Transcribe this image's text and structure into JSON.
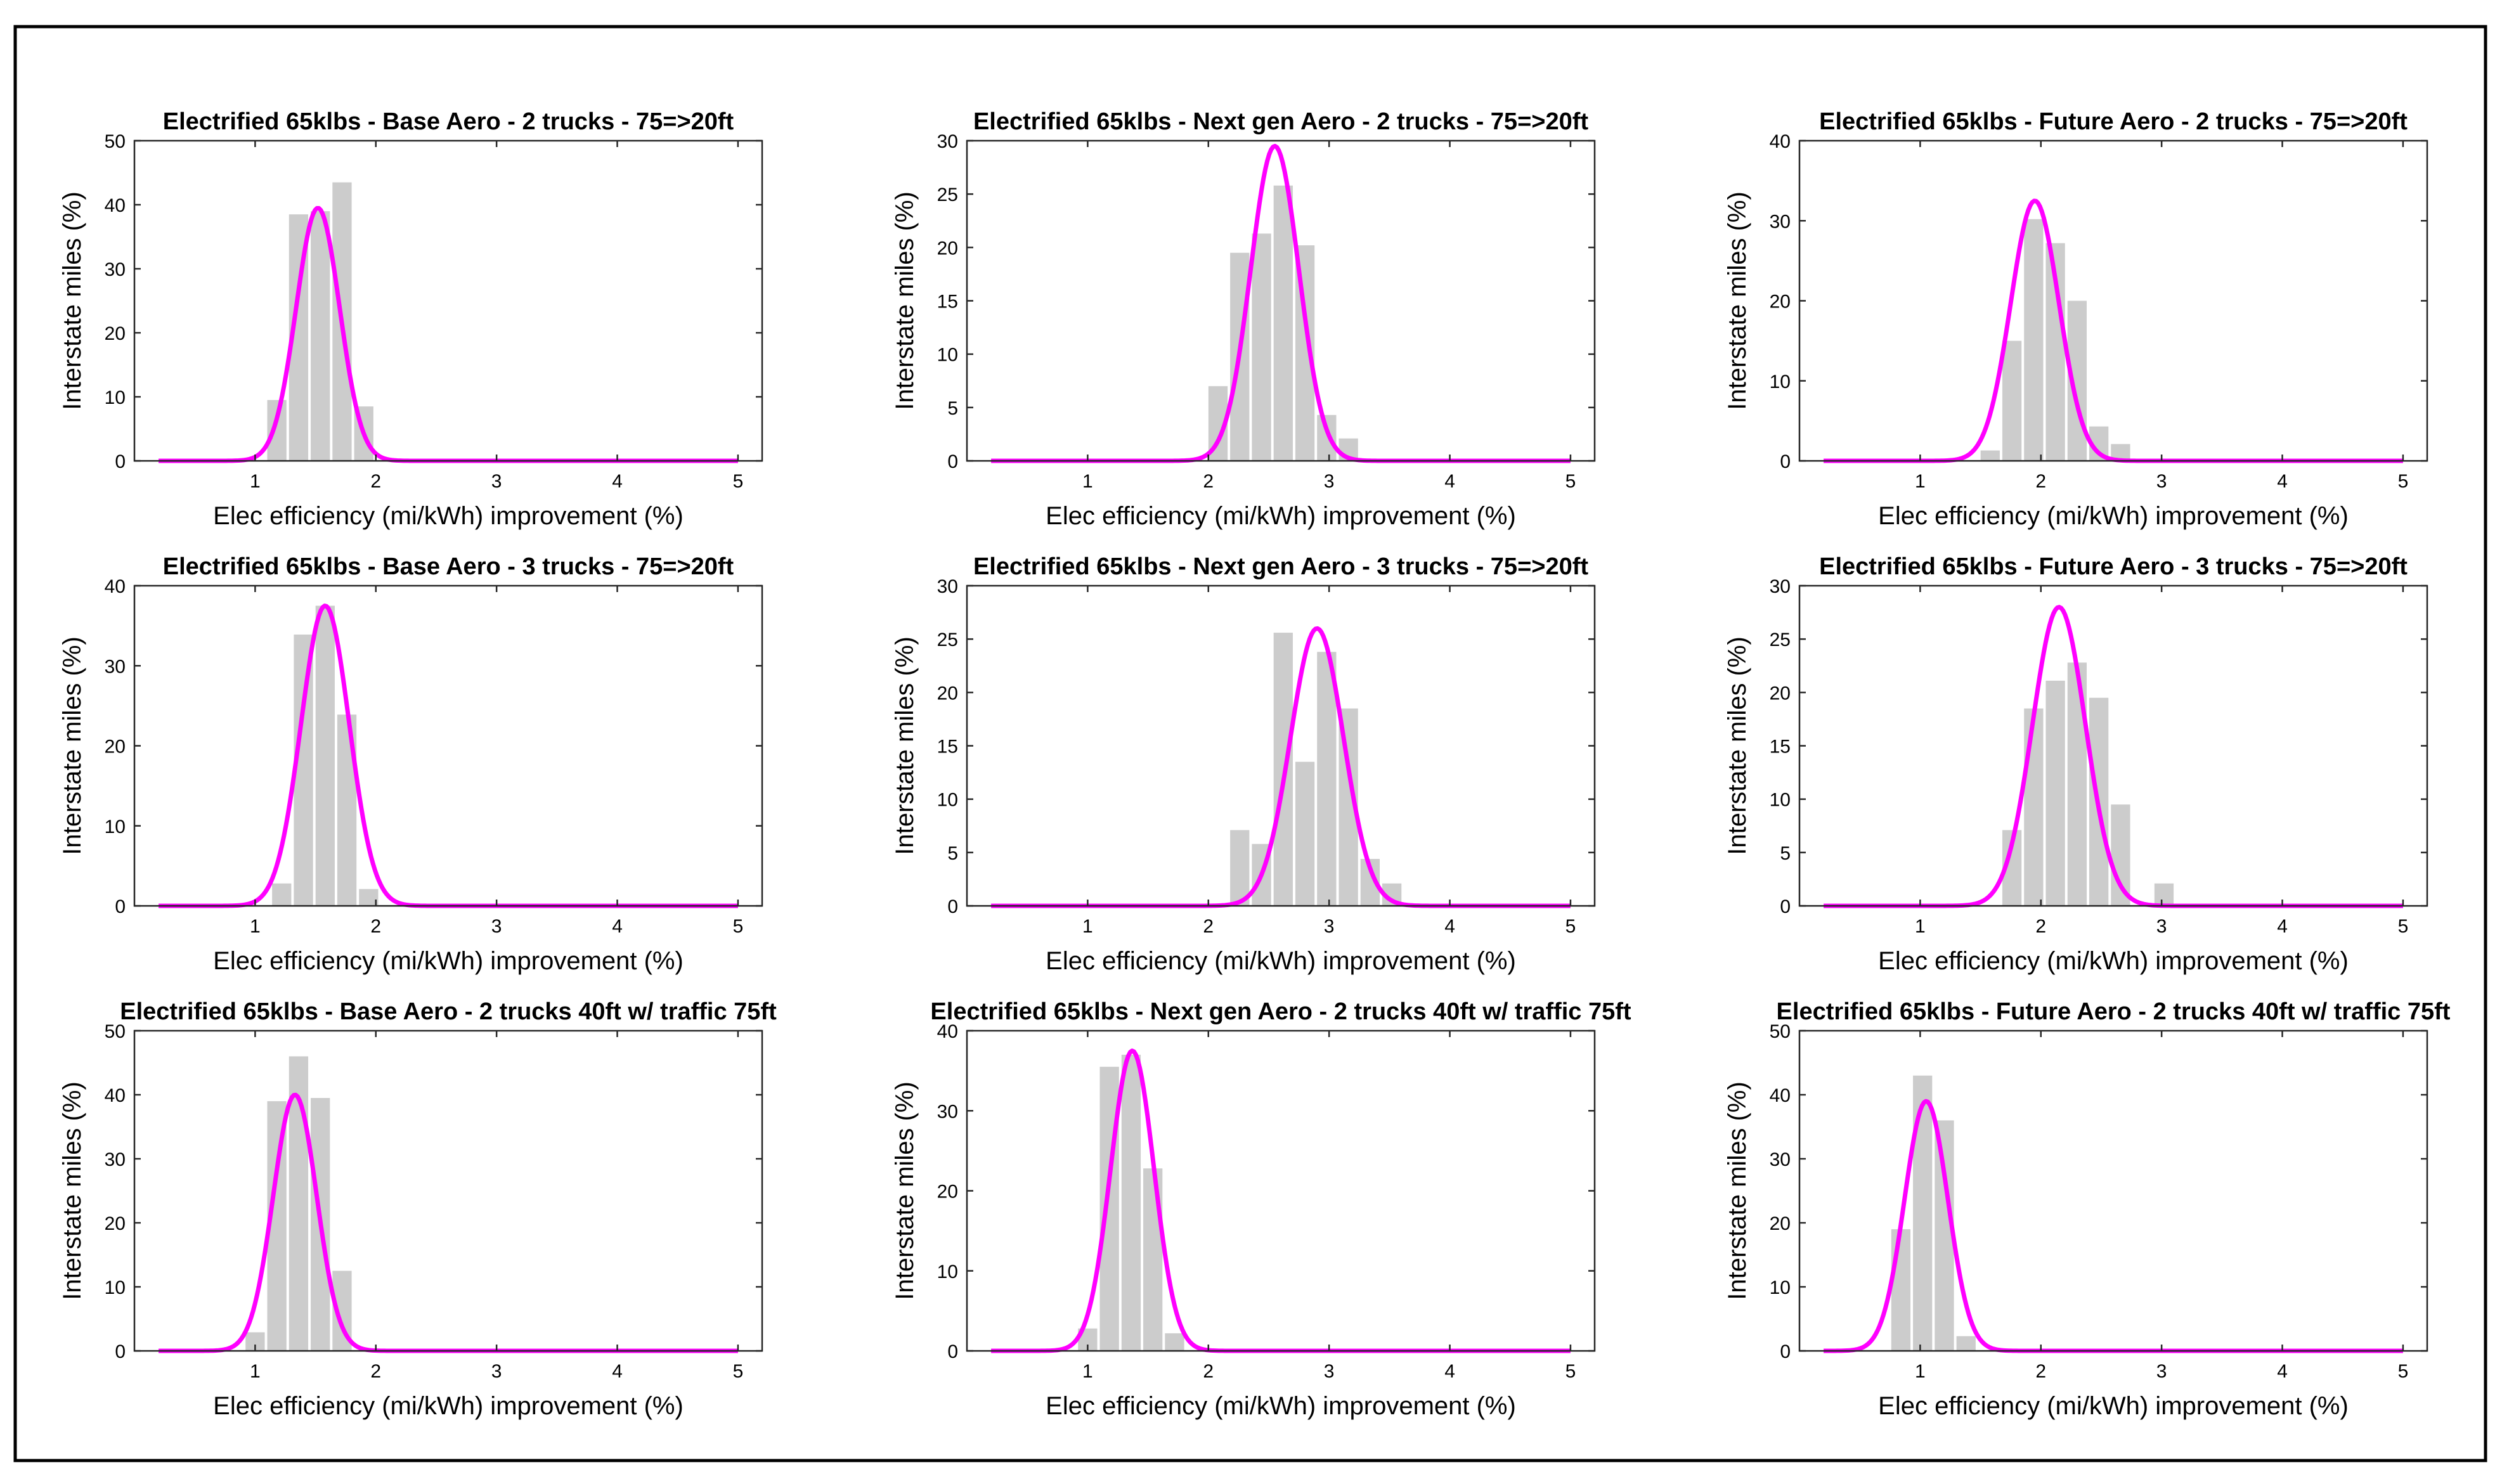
{
  "figure": {
    "background": "#ffffff",
    "border_color": "#000000"
  },
  "style": {
    "bar_color": "#cccccc",
    "curve_color": "#ff00ff"
  },
  "chart_data": [
    {
      "type": "bar",
      "title": "Electrified 65klbs - Base Aero - 2 trucks - 75=>20ft",
      "xlabel": "Elec efficiency (mi/kWh) improvement (%)",
      "ylabel": "Interstate miles (%)",
      "xlim": [
        0,
        5.2
      ],
      "ylim": [
        0,
        50
      ],
      "xticks": [
        1,
        2,
        3,
        4,
        5
      ],
      "yticks": [
        0,
        10,
        20,
        30,
        40,
        50
      ],
      "bin_width": 0.18,
      "bins": [
        {
          "x": 1.18,
          "y": 9.5
        },
        {
          "x": 1.36,
          "y": 38.5
        },
        {
          "x": 1.54,
          "y": 39
        },
        {
          "x": 1.72,
          "y": 43.5
        },
        {
          "x": 1.9,
          "y": 8.5
        }
      ],
      "fit": {
        "mu": 1.52,
        "sigma": 0.18,
        "peak": 39.5,
        "x_range": [
          0.2,
          5.0
        ]
      }
    },
    {
      "type": "bar",
      "title": "Electrified 65klbs - Next gen Aero - 2 trucks - 75=>20ft",
      "xlabel": "Elec efficiency (mi/kWh) improvement (%)",
      "ylabel": "Interstate miles (%)",
      "xlim": [
        0,
        5.2
      ],
      "ylim": [
        0,
        30
      ],
      "xticks": [
        1,
        2,
        3,
        4,
        5
      ],
      "yticks": [
        0,
        5,
        10,
        15,
        20,
        25,
        30
      ],
      "bin_width": 0.18,
      "bins": [
        {
          "x": 2.08,
          "y": 7
        },
        {
          "x": 2.26,
          "y": 19.5
        },
        {
          "x": 2.44,
          "y": 21.3
        },
        {
          "x": 2.62,
          "y": 25.8
        },
        {
          "x": 2.8,
          "y": 20.2
        },
        {
          "x": 2.98,
          "y": 4.3
        },
        {
          "x": 3.16,
          "y": 2.1
        }
      ],
      "fit": {
        "mu": 2.55,
        "sigma": 0.2,
        "peak": 29.5,
        "x_range": [
          0.2,
          5.0
        ]
      }
    },
    {
      "type": "bar",
      "title": "Electrified 65klbs - Future Aero - 2 trucks - 75=>20ft",
      "xlabel": "Elec efficiency (mi/kWh) improvement (%)",
      "ylabel": "Interstate miles (%)",
      "xlim": [
        0,
        5.2
      ],
      "ylim": [
        0,
        40
      ],
      "xticks": [
        1,
        2,
        3,
        4,
        5
      ],
      "yticks": [
        0,
        10,
        20,
        30,
        40
      ],
      "bin_width": 0.18,
      "bins": [
        {
          "x": 1.58,
          "y": 1.3
        },
        {
          "x": 1.76,
          "y": 15
        },
        {
          "x": 1.94,
          "y": 30.2
        },
        {
          "x": 2.12,
          "y": 27.2
        },
        {
          "x": 2.3,
          "y": 20
        },
        {
          "x": 2.48,
          "y": 4.3
        },
        {
          "x": 2.66,
          "y": 2.1
        }
      ],
      "fit": {
        "mu": 1.95,
        "sigma": 0.2,
        "peak": 32.5,
        "x_range": [
          0.2,
          5.0
        ]
      }
    },
    {
      "type": "bar",
      "title": "Electrified 65klbs - Base Aero - 3 trucks - 75=>20ft",
      "xlabel": "Elec efficiency (mi/kWh) improvement (%)",
      "ylabel": "Interstate miles (%)",
      "xlim": [
        0,
        5.2
      ],
      "ylim": [
        0,
        40
      ],
      "xticks": [
        1,
        2,
        3,
        4,
        5
      ],
      "yticks": [
        0,
        10,
        20,
        30,
        40
      ],
      "bin_width": 0.18,
      "bins": [
        {
          "x": 1.22,
          "y": 2.8
        },
        {
          "x": 1.4,
          "y": 33.9
        },
        {
          "x": 1.58,
          "y": 37.5
        },
        {
          "x": 1.76,
          "y": 23.9
        },
        {
          "x": 1.94,
          "y": 2.1
        }
      ],
      "fit": {
        "mu": 1.58,
        "sigma": 0.2,
        "peak": 37.5,
        "x_range": [
          0.2,
          5.0
        ]
      }
    },
    {
      "type": "bar",
      "title": "Electrified 65klbs - Next gen Aero - 3 trucks - 75=>20ft",
      "xlabel": "Elec efficiency (mi/kWh) improvement (%)",
      "ylabel": "Interstate miles (%)",
      "xlim": [
        0,
        5.2
      ],
      "ylim": [
        0,
        30
      ],
      "xticks": [
        1,
        2,
        3,
        4,
        5
      ],
      "yticks": [
        0,
        5,
        10,
        15,
        20,
        25,
        30
      ],
      "bin_width": 0.18,
      "bins": [
        {
          "x": 2.26,
          "y": 7.1
        },
        {
          "x": 2.44,
          "y": 5.8
        },
        {
          "x": 2.62,
          "y": 25.6
        },
        {
          "x": 2.8,
          "y": 13.5
        },
        {
          "x": 2.98,
          "y": 23.8
        },
        {
          "x": 3.16,
          "y": 18.5
        },
        {
          "x": 3.34,
          "y": 4.4
        },
        {
          "x": 3.52,
          "y": 2.1
        }
      ],
      "fit": {
        "mu": 2.9,
        "sigma": 0.22,
        "peak": 26,
        "x_range": [
          0.2,
          5.0
        ]
      }
    },
    {
      "type": "bar",
      "title": "Electrified 65klbs - Future Aero - 3 trucks - 75=>20ft",
      "xlabel": "Elec efficiency (mi/kWh) improvement (%)",
      "ylabel": "Interstate miles (%)",
      "xlim": [
        0,
        5.2
      ],
      "ylim": [
        0,
        30
      ],
      "xticks": [
        1,
        2,
        3,
        4,
        5
      ],
      "yticks": [
        0,
        5,
        10,
        15,
        20,
        25,
        30
      ],
      "bin_width": 0.18,
      "bins": [
        {
          "x": 1.76,
          "y": 7.1
        },
        {
          "x": 1.94,
          "y": 18.5
        },
        {
          "x": 2.12,
          "y": 21.1
        },
        {
          "x": 2.3,
          "y": 22.8
        },
        {
          "x": 2.48,
          "y": 19.5
        },
        {
          "x": 2.66,
          "y": 9.5
        },
        {
          "x": 3.02,
          "y": 2.1
        }
      ],
      "fit": {
        "mu": 2.15,
        "sigma": 0.22,
        "peak": 28,
        "x_range": [
          0.2,
          5.0
        ]
      }
    },
    {
      "type": "bar",
      "title": "Electrified 65klbs - Base Aero - 2 trucks 40ft w/ traffic 75ft",
      "xlabel": "Elec efficiency (mi/kWh) improvement (%)",
      "ylabel": "Interstate miles (%)",
      "xlim": [
        0,
        5.2
      ],
      "ylim": [
        0,
        50
      ],
      "xticks": [
        1,
        2,
        3,
        4,
        5
      ],
      "yticks": [
        0,
        10,
        20,
        30,
        40,
        50
      ],
      "bin_width": 0.18,
      "bins": [
        {
          "x": 1.0,
          "y": 2.9
        },
        {
          "x": 1.18,
          "y": 39
        },
        {
          "x": 1.36,
          "y": 46
        },
        {
          "x": 1.54,
          "y": 39.5
        },
        {
          "x": 1.72,
          "y": 12.5
        }
      ],
      "fit": {
        "mu": 1.33,
        "sigma": 0.18,
        "peak": 40,
        "x_range": [
          0.2,
          5.0
        ]
      }
    },
    {
      "type": "bar",
      "title": "Electrified 65klbs - Next gen Aero - 2 trucks 40ft w/ traffic 75ft",
      "xlabel": "Elec efficiency (mi/kWh) improvement (%)",
      "ylabel": "Interstate miles (%)",
      "xlim": [
        0,
        5.2
      ],
      "ylim": [
        0,
        40
      ],
      "xticks": [
        1,
        2,
        3,
        4,
        5
      ],
      "yticks": [
        0,
        10,
        20,
        30,
        40
      ],
      "bin_width": 0.18,
      "bins": [
        {
          "x": 1.0,
          "y": 2.8
        },
        {
          "x": 1.18,
          "y": 35.5
        },
        {
          "x": 1.36,
          "y": 37
        },
        {
          "x": 1.54,
          "y": 22.8
        },
        {
          "x": 1.72,
          "y": 2.2
        }
      ],
      "fit": {
        "mu": 1.37,
        "sigma": 0.18,
        "peak": 37.5,
        "x_range": [
          0.2,
          5.0
        ]
      }
    },
    {
      "type": "bar",
      "title": "Electrified 65klbs - Future Aero - 2 trucks 40ft w/ traffic 75ft",
      "xlabel": "Elec efficiency (mi/kWh) improvement (%)",
      "ylabel": "Interstate miles (%)",
      "xlim": [
        0,
        5.2
      ],
      "ylim": [
        0,
        50
      ],
      "xticks": [
        1,
        2,
        3,
        4,
        5
      ],
      "yticks": [
        0,
        10,
        20,
        30,
        40,
        50
      ],
      "bin_width": 0.18,
      "bins": [
        {
          "x": 0.84,
          "y": 19
        },
        {
          "x": 1.02,
          "y": 43
        },
        {
          "x": 1.2,
          "y": 36
        },
        {
          "x": 1.38,
          "y": 2.3
        }
      ],
      "fit": {
        "mu": 1.05,
        "sigma": 0.18,
        "peak": 39,
        "x_range": [
          0.2,
          5.0
        ]
      }
    }
  ]
}
